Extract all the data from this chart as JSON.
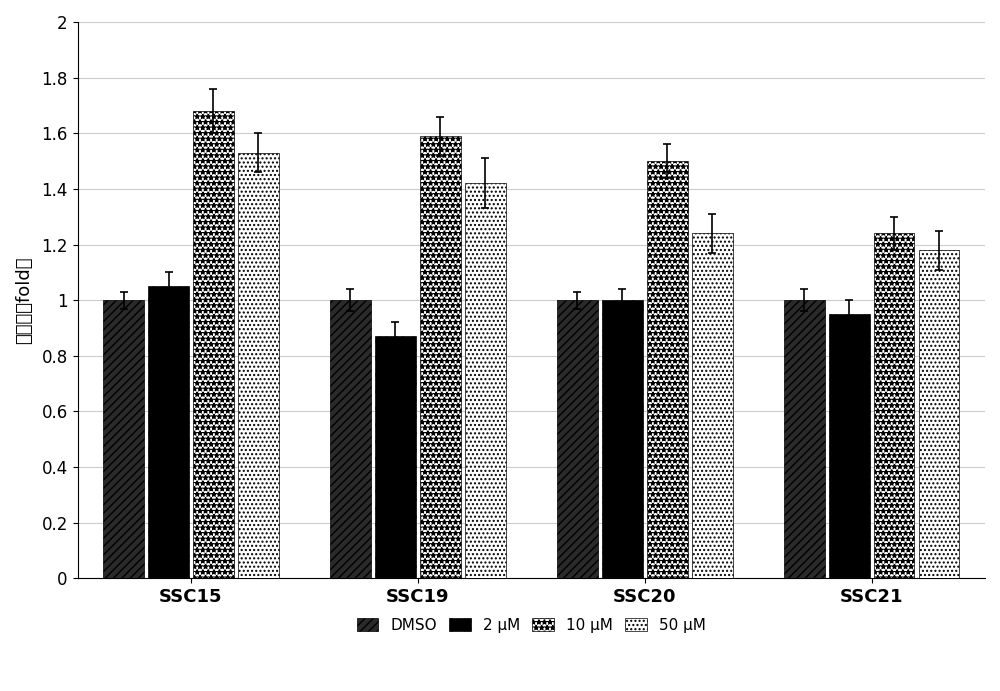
{
  "groups": [
    "SSC15",
    "SSC19",
    "SSC20",
    "SSC21"
  ],
  "conditions": [
    "DMSO",
    "2 μM",
    "10 μM",
    "50 μM"
  ],
  "values": [
    [
      1.0,
      1.05,
      1.68,
      1.53
    ],
    [
      1.0,
      0.87,
      1.59,
      1.42
    ],
    [
      1.0,
      1.0,
      1.5,
      1.24
    ],
    [
      1.0,
      0.95,
      1.24,
      1.18
    ]
  ],
  "errors": [
    [
      0.03,
      0.05,
      0.08,
      0.07
    ],
    [
      0.04,
      0.05,
      0.07,
      0.09
    ],
    [
      0.03,
      0.04,
      0.06,
      0.07
    ],
    [
      0.04,
      0.05,
      0.06,
      0.07
    ]
  ],
  "ylim": [
    0,
    2.0
  ],
  "yticks": [
    0,
    0.2,
    0.4,
    0.6,
    0.8,
    1.0,
    1.2,
    1.4,
    1.6,
    1.8,
    2.0
  ],
  "ylabel": "生存率（fold）",
  "background_color": "#ffffff",
  "bar_width": 0.18,
  "legend_labels": [
    "DMSO",
    "2 μM",
    "10 μM",
    "50 μM"
  ],
  "edgecolor": "#000000",
  "grid_color": "#cccccc"
}
